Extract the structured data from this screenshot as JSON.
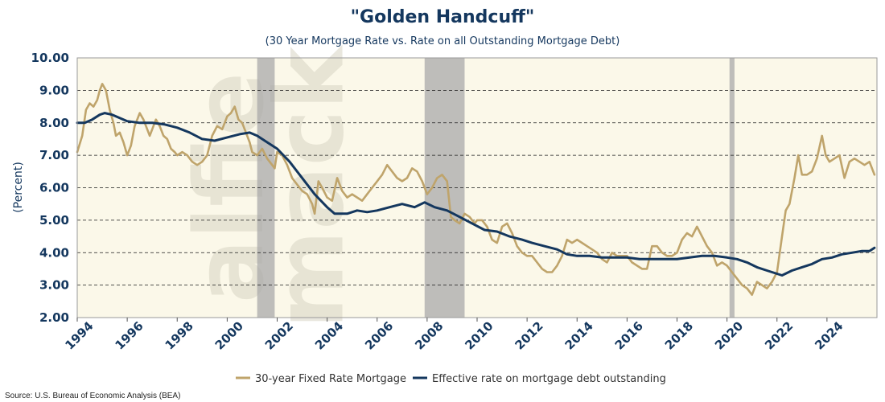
{
  "chart_data": {
    "type": "line",
    "title": "\"Golden Handcuff\"",
    "subtitle": "(30 Year Mortgage Rate vs. Rate on all Outstanding Mortgage Debt)",
    "ylabel": "(Percent)",
    "xlabel": "",
    "xlim": [
      1994,
      2026
    ],
    "ylim": [
      2.0,
      10.0
    ],
    "yticks": [
      "2.00",
      "3.00",
      "4.00",
      "5.00",
      "6.00",
      "7.00",
      "8.00",
      "9.00",
      "10.00"
    ],
    "xticks": [
      "1994",
      "1996",
      "1998",
      "2000",
      "2002",
      "2004",
      "2006",
      "2008",
      "2010",
      "2012",
      "2014",
      "2016",
      "2018",
      "2020",
      "2022",
      "2024"
    ],
    "grid": "horizontal dashed",
    "legend_position": "bottom",
    "recessions": [
      [
        2001.2,
        2001.9
      ],
      [
        2007.9,
        2009.5
      ],
      [
        2020.1,
        2020.3
      ]
    ],
    "series": [
      {
        "name": "30-year Fixed Rate Mortgage",
        "color": "#bfa46b",
        "points": [
          [
            1994.0,
            7.1
          ],
          [
            1994.2,
            7.6
          ],
          [
            1994.35,
            8.4
          ],
          [
            1994.5,
            8.6
          ],
          [
            1994.65,
            8.5
          ],
          [
            1994.8,
            8.7
          ],
          [
            1994.9,
            9.0
          ],
          [
            1995.0,
            9.2
          ],
          [
            1995.15,
            9.0
          ],
          [
            1995.3,
            8.4
          ],
          [
            1995.45,
            8.0
          ],
          [
            1995.55,
            7.6
          ],
          [
            1995.7,
            7.7
          ],
          [
            1995.85,
            7.4
          ],
          [
            1996.0,
            7.0
          ],
          [
            1996.15,
            7.3
          ],
          [
            1996.3,
            7.9
          ],
          [
            1996.5,
            8.3
          ],
          [
            1996.65,
            8.1
          ],
          [
            1996.8,
            7.8
          ],
          [
            1996.9,
            7.6
          ],
          [
            1997.0,
            7.8
          ],
          [
            1997.15,
            8.1
          ],
          [
            1997.3,
            7.9
          ],
          [
            1997.45,
            7.6
          ],
          [
            1997.6,
            7.5
          ],
          [
            1997.75,
            7.2
          ],
          [
            1997.9,
            7.1
          ],
          [
            1998.0,
            7.0
          ],
          [
            1998.2,
            7.1
          ],
          [
            1998.4,
            7.0
          ],
          [
            1998.6,
            6.8
          ],
          [
            1998.8,
            6.7
          ],
          [
            1999.0,
            6.8
          ],
          [
            1999.2,
            7.0
          ],
          [
            1999.4,
            7.6
          ],
          [
            1999.6,
            7.9
          ],
          [
            1999.8,
            7.8
          ],
          [
            2000.0,
            8.2
          ],
          [
            2000.15,
            8.3
          ],
          [
            2000.3,
            8.5
          ],
          [
            2000.45,
            8.1
          ],
          [
            2000.6,
            8.0
          ],
          [
            2000.75,
            7.7
          ],
          [
            2000.9,
            7.4
          ],
          [
            2001.0,
            7.1
          ],
          [
            2001.2,
            7.0
          ],
          [
            2001.4,
            7.2
          ],
          [
            2001.6,
            6.9
          ],
          [
            2001.8,
            6.7
          ],
          [
            2001.9,
            6.6
          ],
          [
            2002.0,
            7.1
          ],
          [
            2002.2,
            7.0
          ],
          [
            2002.4,
            6.7
          ],
          [
            2002.6,
            6.3
          ],
          [
            2002.8,
            6.1
          ],
          [
            2003.0,
            5.9
          ],
          [
            2003.2,
            5.8
          ],
          [
            2003.4,
            5.5
          ],
          [
            2003.5,
            5.2
          ],
          [
            2003.65,
            6.2
          ],
          [
            2003.8,
            6.0
          ],
          [
            2004.0,
            5.7
          ],
          [
            2004.2,
            5.6
          ],
          [
            2004.4,
            6.3
          ],
          [
            2004.6,
            5.9
          ],
          [
            2004.8,
            5.7
          ],
          [
            2005.0,
            5.8
          ],
          [
            2005.2,
            5.7
          ],
          [
            2005.4,
            5.6
          ],
          [
            2005.6,
            5.8
          ],
          [
            2005.8,
            6.0
          ],
          [
            2006.0,
            6.2
          ],
          [
            2006.2,
            6.4
          ],
          [
            2006.4,
            6.7
          ],
          [
            2006.6,
            6.5
          ],
          [
            2006.8,
            6.3
          ],
          [
            2007.0,
            6.2
          ],
          [
            2007.2,
            6.3
          ],
          [
            2007.4,
            6.6
          ],
          [
            2007.6,
            6.5
          ],
          [
            2007.8,
            6.2
          ],
          [
            2008.0,
            5.8
          ],
          [
            2008.2,
            6.0
          ],
          [
            2008.4,
            6.3
          ],
          [
            2008.6,
            6.4
          ],
          [
            2008.8,
            6.2
          ],
          [
            2008.95,
            5.1
          ],
          [
            2009.1,
            5.0
          ],
          [
            2009.3,
            4.9
          ],
          [
            2009.5,
            5.2
          ],
          [
            2009.7,
            5.1
          ],
          [
            2009.9,
            4.9
          ],
          [
            2010.0,
            5.0
          ],
          [
            2010.2,
            5.0
          ],
          [
            2010.4,
            4.8
          ],
          [
            2010.6,
            4.4
          ],
          [
            2010.8,
            4.3
          ],
          [
            2011.0,
            4.8
          ],
          [
            2011.2,
            4.9
          ],
          [
            2011.4,
            4.6
          ],
          [
            2011.6,
            4.2
          ],
          [
            2011.8,
            4.0
          ],
          [
            2012.0,
            3.9
          ],
          [
            2012.2,
            3.9
          ],
          [
            2012.4,
            3.7
          ],
          [
            2012.6,
            3.5
          ],
          [
            2012.8,
            3.4
          ],
          [
            2013.0,
            3.4
          ],
          [
            2013.2,
            3.6
          ],
          [
            2013.4,
            3.9
          ],
          [
            2013.6,
            4.4
          ],
          [
            2013.8,
            4.3
          ],
          [
            2014.0,
            4.4
          ],
          [
            2014.2,
            4.3
          ],
          [
            2014.4,
            4.2
          ],
          [
            2014.6,
            4.1
          ],
          [
            2014.8,
            4.0
          ],
          [
            2015.0,
            3.8
          ],
          [
            2015.2,
            3.7
          ],
          [
            2015.4,
            4.0
          ],
          [
            2015.6,
            3.9
          ],
          [
            2015.8,
            3.9
          ],
          [
            2016.0,
            3.9
          ],
          [
            2016.2,
            3.7
          ],
          [
            2016.4,
            3.6
          ],
          [
            2016.6,
            3.5
          ],
          [
            2016.8,
            3.5
          ],
          [
            2017.0,
            4.2
          ],
          [
            2017.2,
            4.2
          ],
          [
            2017.4,
            4.0
          ],
          [
            2017.6,
            3.9
          ],
          [
            2017.8,
            3.9
          ],
          [
            2018.0,
            4.0
          ],
          [
            2018.2,
            4.4
          ],
          [
            2018.4,
            4.6
          ],
          [
            2018.6,
            4.5
          ],
          [
            2018.8,
            4.8
          ],
          [
            2019.0,
            4.5
          ],
          [
            2019.2,
            4.2
          ],
          [
            2019.4,
            4.0
          ],
          [
            2019.6,
            3.6
          ],
          [
            2019.8,
            3.7
          ],
          [
            2020.0,
            3.6
          ],
          [
            2020.2,
            3.4
          ],
          [
            2020.4,
            3.2
          ],
          [
            2020.6,
            3.0
          ],
          [
            2020.8,
            2.9
          ],
          [
            2021.0,
            2.7
          ],
          [
            2021.2,
            3.1
          ],
          [
            2021.4,
            3.0
          ],
          [
            2021.6,
            2.9
          ],
          [
            2021.8,
            3.1
          ],
          [
            2022.0,
            3.4
          ],
          [
            2022.2,
            4.5
          ],
          [
            2022.35,
            5.3
          ],
          [
            2022.5,
            5.5
          ],
          [
            2022.7,
            6.3
          ],
          [
            2022.85,
            7.0
          ],
          [
            2023.0,
            6.4
          ],
          [
            2023.2,
            6.4
          ],
          [
            2023.4,
            6.5
          ],
          [
            2023.6,
            6.9
          ],
          [
            2023.8,
            7.6
          ],
          [
            2023.95,
            7.0
          ],
          [
            2024.1,
            6.8
          ],
          [
            2024.3,
            6.9
          ],
          [
            2024.5,
            7.0
          ],
          [
            2024.7,
            6.3
          ],
          [
            2024.9,
            6.8
          ],
          [
            2025.1,
            6.9
          ],
          [
            2025.3,
            6.8
          ],
          [
            2025.5,
            6.7
          ],
          [
            2025.7,
            6.8
          ],
          [
            2025.9,
            6.4
          ]
        ]
      },
      {
        "name": "Effective rate on mortgage debt outstanding",
        "color": "#14375e",
        "points": [
          [
            1994.0,
            8.0
          ],
          [
            1994.3,
            8.0
          ],
          [
            1994.6,
            8.1
          ],
          [
            1994.9,
            8.25
          ],
          [
            1995.1,
            8.3
          ],
          [
            1995.4,
            8.25
          ],
          [
            1995.7,
            8.15
          ],
          [
            1996.0,
            8.05
          ],
          [
            1996.5,
            8.0
          ],
          [
            1997.0,
            8.0
          ],
          [
            1997.5,
            7.95
          ],
          [
            1998.0,
            7.85
          ],
          [
            1998.5,
            7.7
          ],
          [
            1999.0,
            7.5
          ],
          [
            1999.5,
            7.45
          ],
          [
            2000.0,
            7.55
          ],
          [
            2000.5,
            7.65
          ],
          [
            2000.9,
            7.7
          ],
          [
            2001.2,
            7.6
          ],
          [
            2001.6,
            7.4
          ],
          [
            2002.0,
            7.2
          ],
          [
            2002.5,
            6.8
          ],
          [
            2003.0,
            6.3
          ],
          [
            2003.5,
            5.8
          ],
          [
            2004.0,
            5.4
          ],
          [
            2004.3,
            5.2
          ],
          [
            2004.8,
            5.2
          ],
          [
            2005.2,
            5.3
          ],
          [
            2005.6,
            5.25
          ],
          [
            2006.0,
            5.3
          ],
          [
            2006.5,
            5.4
          ],
          [
            2007.0,
            5.5
          ],
          [
            2007.5,
            5.4
          ],
          [
            2007.9,
            5.55
          ],
          [
            2008.3,
            5.4
          ],
          [
            2008.8,
            5.3
          ],
          [
            2009.3,
            5.1
          ],
          [
            2009.8,
            4.9
          ],
          [
            2010.3,
            4.7
          ],
          [
            2010.8,
            4.65
          ],
          [
            2011.3,
            4.5
          ],
          [
            2011.8,
            4.4
          ],
          [
            2012.2,
            4.3
          ],
          [
            2012.7,
            4.2
          ],
          [
            2013.2,
            4.1
          ],
          [
            2013.6,
            3.95
          ],
          [
            2014.0,
            3.9
          ],
          [
            2014.5,
            3.9
          ],
          [
            2015.0,
            3.85
          ],
          [
            2015.5,
            3.85
          ],
          [
            2016.0,
            3.85
          ],
          [
            2016.5,
            3.8
          ],
          [
            2017.0,
            3.8
          ],
          [
            2017.5,
            3.8
          ],
          [
            2018.0,
            3.8
          ],
          [
            2018.5,
            3.85
          ],
          [
            2019.0,
            3.9
          ],
          [
            2019.5,
            3.9
          ],
          [
            2020.0,
            3.85
          ],
          [
            2020.4,
            3.8
          ],
          [
            2020.8,
            3.7
          ],
          [
            2021.2,
            3.55
          ],
          [
            2021.6,
            3.45
          ],
          [
            2022.0,
            3.35
          ],
          [
            2022.2,
            3.3
          ],
          [
            2022.6,
            3.45
          ],
          [
            2023.0,
            3.55
          ],
          [
            2023.4,
            3.65
          ],
          [
            2023.8,
            3.8
          ],
          [
            2024.2,
            3.85
          ],
          [
            2024.6,
            3.95
          ],
          [
            2025.0,
            4.0
          ],
          [
            2025.4,
            4.05
          ],
          [
            2025.7,
            4.05
          ],
          [
            2025.9,
            4.15
          ]
        ]
      }
    ],
    "source": "Source: U.S. Bureau of Economic Analysis (BEA)",
    "watermark": "alfie mack"
  }
}
